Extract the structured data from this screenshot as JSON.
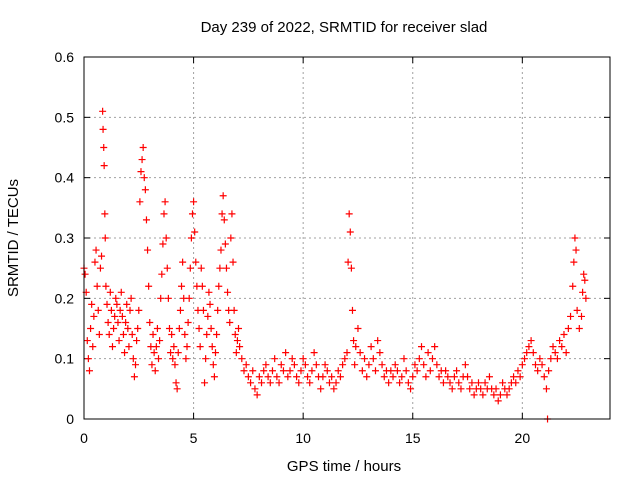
{
  "chart_data": {
    "type": "scatter",
    "title": "Day 239 of 2022, SRMTID for receiver slad",
    "xlabel": "GPS time / hours",
    "ylabel": "SRMTID / TECUs",
    "xlim": [
      0,
      24
    ],
    "ylim": [
      0,
      0.6
    ],
    "xticks": [
      0,
      5,
      10,
      15,
      20
    ],
    "yticks": [
      0,
      0.1,
      0.2,
      0.3,
      0.4,
      0.5,
      0.6
    ],
    "xtick_labels": [
      "0",
      "5",
      "10",
      "15",
      "20"
    ],
    "ytick_labels": [
      "0",
      "0.1",
      "0.2",
      "0.3",
      "0.4",
      "0.5",
      "0.6"
    ],
    "grid": true,
    "marker": "+",
    "color": "#ff0000",
    "series": [
      {
        "name": "SRMTID",
        "points": [
          [
            0.0,
            0.25
          ],
          [
            0.05,
            0.24
          ],
          [
            0.1,
            0.21
          ],
          [
            0.15,
            0.13
          ],
          [
            0.2,
            0.1
          ],
          [
            0.25,
            0.08
          ],
          [
            0.3,
            0.15
          ],
          [
            0.35,
            0.19
          ],
          [
            0.4,
            0.12
          ],
          [
            0.45,
            0.17
          ],
          [
            0.5,
            0.26
          ],
          [
            0.55,
            0.28
          ],
          [
            0.6,
            0.22
          ],
          [
            0.65,
            0.18
          ],
          [
            0.7,
            0.14
          ],
          [
            0.75,
            0.25
          ],
          [
            0.8,
            0.27
          ],
          [
            0.85,
            0.51
          ],
          [
            0.87,
            0.48
          ],
          [
            0.9,
            0.45
          ],
          [
            0.92,
            0.42
          ],
          [
            0.95,
            0.34
          ],
          [
            0.97,
            0.3
          ],
          [
            1.0,
            0.22
          ],
          [
            1.05,
            0.19
          ],
          [
            1.1,
            0.16
          ],
          [
            1.15,
            0.14
          ],
          [
            1.2,
            0.21
          ],
          [
            1.25,
            0.18
          ],
          [
            1.3,
            0.12
          ],
          [
            1.35,
            0.15
          ],
          [
            1.4,
            0.17
          ],
          [
            1.45,
            0.2
          ],
          [
            1.5,
            0.19
          ],
          [
            1.55,
            0.16
          ],
          [
            1.6,
            0.13
          ],
          [
            1.65,
            0.18
          ],
          [
            1.7,
            0.21
          ],
          [
            1.75,
            0.17
          ],
          [
            1.8,
            0.14
          ],
          [
            1.85,
            0.11
          ],
          [
            1.9,
            0.16
          ],
          [
            1.95,
            0.19
          ],
          [
            2.0,
            0.15
          ],
          [
            2.05,
            0.12
          ],
          [
            2.1,
            0.18
          ],
          [
            2.15,
            0.2
          ],
          [
            2.2,
            0.14
          ],
          [
            2.25,
            0.1
          ],
          [
            2.3,
            0.07
          ],
          [
            2.35,
            0.09
          ],
          [
            2.4,
            0.13
          ],
          [
            2.45,
            0.15
          ],
          [
            2.5,
            0.18
          ],
          [
            2.55,
            0.36
          ],
          [
            2.6,
            0.41
          ],
          [
            2.65,
            0.43
          ],
          [
            2.7,
            0.45
          ],
          [
            2.75,
            0.4
          ],
          [
            2.8,
            0.38
          ],
          [
            2.85,
            0.33
          ],
          [
            2.9,
            0.28
          ],
          [
            2.95,
            0.22
          ],
          [
            3.0,
            0.16
          ],
          [
            3.05,
            0.12
          ],
          [
            3.1,
            0.09
          ],
          [
            3.15,
            0.14
          ],
          [
            3.2,
            0.11
          ],
          [
            3.25,
            0.08
          ],
          [
            3.3,
            0.12
          ],
          [
            3.35,
            0.15
          ],
          [
            3.4,
            0.1
          ],
          [
            3.45,
            0.13
          ],
          [
            3.5,
            0.2
          ],
          [
            3.55,
            0.24
          ],
          [
            3.6,
            0.29
          ],
          [
            3.65,
            0.34
          ],
          [
            3.7,
            0.36
          ],
          [
            3.75,
            0.3
          ],
          [
            3.8,
            0.25
          ],
          [
            3.85,
            0.2
          ],
          [
            3.9,
            0.15
          ],
          [
            3.95,
            0.11
          ],
          [
            4.0,
            0.14
          ],
          [
            4.05,
            0.1
          ],
          [
            4.1,
            0.12
          ],
          [
            4.15,
            0.09
          ],
          [
            4.2,
            0.06
          ],
          [
            4.25,
            0.05
          ],
          [
            4.3,
            0.11
          ],
          [
            4.35,
            0.15
          ],
          [
            4.4,
            0.18
          ],
          [
            4.45,
            0.22
          ],
          [
            4.5,
            0.26
          ],
          [
            4.55,
            0.2
          ],
          [
            4.6,
            0.14
          ],
          [
            4.65,
            0.1
          ],
          [
            4.7,
            0.12
          ],
          [
            4.75,
            0.16
          ],
          [
            4.8,
            0.2
          ],
          [
            4.85,
            0.25
          ],
          [
            4.9,
            0.3
          ],
          [
            4.95,
            0.34
          ],
          [
            5.0,
            0.36
          ],
          [
            5.05,
            0.31
          ],
          [
            5.1,
            0.26
          ],
          [
            5.15,
            0.22
          ],
          [
            5.2,
            0.18
          ],
          [
            5.25,
            0.15
          ],
          [
            5.3,
            0.12
          ],
          [
            5.35,
            0.25
          ],
          [
            5.4,
            0.22
          ],
          [
            5.45,
            0.18
          ],
          [
            5.5,
            0.06
          ],
          [
            5.55,
            0.1
          ],
          [
            5.6,
            0.14
          ],
          [
            5.65,
            0.17
          ],
          [
            5.7,
            0.21
          ],
          [
            5.75,
            0.19
          ],
          [
            5.8,
            0.15
          ],
          [
            5.85,
            0.12
          ],
          [
            5.9,
            0.09
          ],
          [
            5.95,
            0.07
          ],
          [
            6.0,
            0.11
          ],
          [
            6.05,
            0.14
          ],
          [
            6.1,
            0.18
          ],
          [
            6.15,
            0.22
          ],
          [
            6.2,
            0.25
          ],
          [
            6.25,
            0.28
          ],
          [
            6.3,
            0.34
          ],
          [
            6.35,
            0.37
          ],
          [
            6.4,
            0.33
          ],
          [
            6.45,
            0.29
          ],
          [
            6.5,
            0.25
          ],
          [
            6.55,
            0.21
          ],
          [
            6.6,
            0.18
          ],
          [
            6.65,
            0.16
          ],
          [
            6.7,
            0.3
          ],
          [
            6.75,
            0.34
          ],
          [
            6.8,
            0.26
          ],
          [
            6.85,
            0.18
          ],
          [
            6.9,
            0.14
          ],
          [
            6.95,
            0.11
          ],
          [
            7.0,
            0.13
          ],
          [
            7.05,
            0.15
          ],
          [
            7.1,
            0.12
          ],
          [
            7.2,
            0.1
          ],
          [
            7.3,
            0.08
          ],
          [
            7.4,
            0.09
          ],
          [
            7.5,
            0.07
          ],
          [
            7.6,
            0.06
          ],
          [
            7.7,
            0.08
          ],
          [
            7.8,
            0.05
          ],
          [
            7.9,
            0.04
          ],
          [
            8.0,
            0.07
          ],
          [
            8.1,
            0.06
          ],
          [
            8.2,
            0.08
          ],
          [
            8.3,
            0.09
          ],
          [
            8.4,
            0.07
          ],
          [
            8.5,
            0.06
          ],
          [
            8.6,
            0.08
          ],
          [
            8.7,
            0.1
          ],
          [
            8.8,
            0.07
          ],
          [
            8.9,
            0.06
          ],
          [
            9.0,
            0.09
          ],
          [
            9.1,
            0.08
          ],
          [
            9.2,
            0.11
          ],
          [
            9.3,
            0.07
          ],
          [
            9.4,
            0.08
          ],
          [
            9.5,
            0.1
          ],
          [
            9.6,
            0.09
          ],
          [
            9.7,
            0.07
          ],
          [
            9.8,
            0.06
          ],
          [
            9.9,
            0.08
          ],
          [
            10.0,
            0.1
          ],
          [
            10.1,
            0.09
          ],
          [
            10.2,
            0.07
          ],
          [
            10.3,
            0.06
          ],
          [
            10.4,
            0.08
          ],
          [
            10.5,
            0.11
          ],
          [
            10.6,
            0.09
          ],
          [
            10.7,
            0.07
          ],
          [
            10.8,
            0.05
          ],
          [
            10.9,
            0.07
          ],
          [
            11.0,
            0.09
          ],
          [
            11.1,
            0.08
          ],
          [
            11.2,
            0.06
          ],
          [
            11.3,
            0.07
          ],
          [
            11.4,
            0.05
          ],
          [
            11.5,
            0.06
          ],
          [
            11.6,
            0.08
          ],
          [
            11.7,
            0.07
          ],
          [
            11.8,
            0.09
          ],
          [
            11.9,
            0.1
          ],
          [
            12.0,
            0.11
          ],
          [
            12.05,
            0.26
          ],
          [
            12.1,
            0.34
          ],
          [
            12.15,
            0.31
          ],
          [
            12.2,
            0.25
          ],
          [
            12.25,
            0.18
          ],
          [
            12.3,
            0.13
          ],
          [
            12.35,
            0.09
          ],
          [
            12.4,
            0.12
          ],
          [
            12.5,
            0.15
          ],
          [
            12.6,
            0.11
          ],
          [
            12.7,
            0.08
          ],
          [
            12.8,
            0.1
          ],
          [
            12.9,
            0.07
          ],
          [
            13.0,
            0.09
          ],
          [
            13.1,
            0.12
          ],
          [
            13.2,
            0.1
          ],
          [
            13.3,
            0.08
          ],
          [
            13.4,
            0.13
          ],
          [
            13.5,
            0.11
          ],
          [
            13.6,
            0.09
          ],
          [
            13.7,
            0.07
          ],
          [
            13.8,
            0.08
          ],
          [
            13.9,
            0.06
          ],
          [
            14.0,
            0.08
          ],
          [
            14.1,
            0.07
          ],
          [
            14.2,
            0.09
          ],
          [
            14.3,
            0.08
          ],
          [
            14.4,
            0.06
          ],
          [
            14.5,
            0.07
          ],
          [
            14.6,
            0.1
          ],
          [
            14.7,
            0.08
          ],
          [
            14.8,
            0.06
          ],
          [
            14.9,
            0.05
          ],
          [
            15.0,
            0.07
          ],
          [
            15.1,
            0.09
          ],
          [
            15.2,
            0.08
          ],
          [
            15.3,
            0.1
          ],
          [
            15.4,
            0.12
          ],
          [
            15.5,
            0.09
          ],
          [
            15.6,
            0.07
          ],
          [
            15.7,
            0.11
          ],
          [
            15.8,
            0.08
          ],
          [
            15.9,
            0.1
          ],
          [
            16.0,
            0.12
          ],
          [
            16.1,
            0.09
          ],
          [
            16.2,
            0.07
          ],
          [
            16.3,
            0.08
          ],
          [
            16.4,
            0.06
          ],
          [
            16.5,
            0.08
          ],
          [
            16.6,
            0.07
          ],
          [
            16.7,
            0.06
          ],
          [
            16.8,
            0.05
          ],
          [
            16.9,
            0.07
          ],
          [
            17.0,
            0.08
          ],
          [
            17.1,
            0.06
          ],
          [
            17.2,
            0.05
          ],
          [
            17.3,
            0.07
          ],
          [
            17.4,
            0.09
          ],
          [
            17.5,
            0.07
          ],
          [
            17.6,
            0.05
          ],
          [
            17.7,
            0.06
          ],
          [
            17.8,
            0.04
          ],
          [
            17.9,
            0.05
          ],
          [
            18.0,
            0.06
          ],
          [
            18.1,
            0.05
          ],
          [
            18.2,
            0.04
          ],
          [
            18.3,
            0.06
          ],
          [
            18.4,
            0.05
          ],
          [
            18.5,
            0.07
          ],
          [
            18.6,
            0.05
          ],
          [
            18.7,
            0.04
          ],
          [
            18.8,
            0.05
          ],
          [
            18.9,
            0.03
          ],
          [
            19.0,
            0.04
          ],
          [
            19.1,
            0.06
          ],
          [
            19.2,
            0.05
          ],
          [
            19.3,
            0.04
          ],
          [
            19.4,
            0.05
          ],
          [
            19.5,
            0.06
          ],
          [
            19.6,
            0.07
          ],
          [
            19.7,
            0.06
          ],
          [
            19.8,
            0.08
          ],
          [
            19.9,
            0.07
          ],
          [
            20.0,
            0.09
          ],
          [
            20.1,
            0.1
          ],
          [
            20.2,
            0.11
          ],
          [
            20.3,
            0.12
          ],
          [
            20.4,
            0.13
          ],
          [
            20.5,
            0.11
          ],
          [
            20.6,
            0.09
          ],
          [
            20.7,
            0.08
          ],
          [
            20.8,
            0.1
          ],
          [
            20.9,
            0.09
          ],
          [
            21.0,
            0.07
          ],
          [
            21.1,
            0.05
          ],
          [
            21.15,
            0.0
          ],
          [
            21.2,
            0.08
          ],
          [
            21.3,
            0.1
          ],
          [
            21.4,
            0.12
          ],
          [
            21.5,
            0.11
          ],
          [
            21.6,
            0.1
          ],
          [
            21.7,
            0.13
          ],
          [
            21.8,
            0.12
          ],
          [
            21.9,
            0.14
          ],
          [
            22.0,
            0.11
          ],
          [
            22.1,
            0.15
          ],
          [
            22.2,
            0.17
          ],
          [
            22.3,
            0.22
          ],
          [
            22.35,
            0.26
          ],
          [
            22.4,
            0.3
          ],
          [
            22.45,
            0.28
          ],
          [
            22.5,
            0.18
          ],
          [
            22.6,
            0.15
          ],
          [
            22.7,
            0.17
          ],
          [
            22.75,
            0.21
          ],
          [
            22.8,
            0.24
          ],
          [
            22.85,
            0.23
          ],
          [
            22.9,
            0.2
          ]
        ]
      }
    ]
  }
}
